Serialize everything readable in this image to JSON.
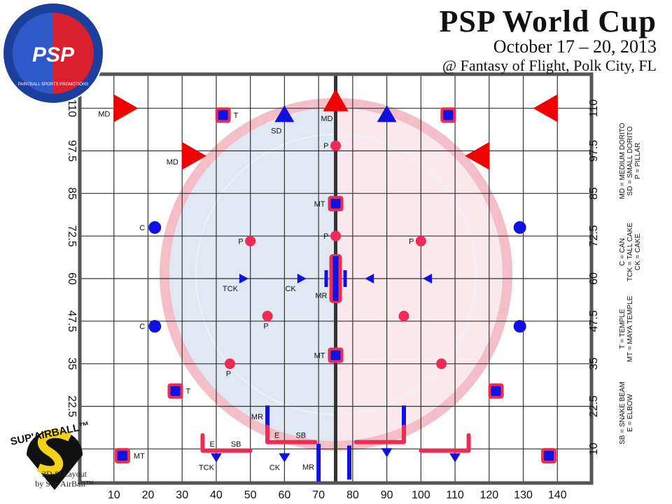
{
  "header": {
    "title": "PSP World Cup",
    "dates": "October 17 – 20, 2013",
    "venue": "@ Fantasy of Flight, Polk City, FL"
  },
  "logo": {
    "text": "PSP",
    "ring_text": "PAINTBALL SPORTS PROMOTIONS"
  },
  "credit": {
    "brand": "SUP'AIRBALL™",
    "line1": "3D & Layout",
    "line2": "by Sup'AirBall™"
  },
  "colors": {
    "red": "#f00000",
    "blue": "#1010e0",
    "pink": "#ee2b55",
    "grid": "#333333"
  },
  "field": {
    "x_range": [
      0,
      150
    ],
    "y_range": [
      0,
      120
    ],
    "x_ticks": [
      10,
      20,
      30,
      40,
      50,
      60,
      70,
      80,
      90,
      100,
      110,
      120,
      130,
      140
    ],
    "y_ticks": [
      "10",
      "22.5",
      "35",
      "47.5",
      "60",
      "72.5",
      "85",
      "97.5",
      "110"
    ]
  },
  "legend": [
    [
      "MD = MEDIUM DORITO",
      "SD = SMALL DORITO",
      "P = PILLAR"
    ],
    [
      "C = CAN",
      "TCK = TALL CAKE",
      "CK = CAKE"
    ],
    [
      "T = TEMPLE",
      "MT = MAYA TEMPLE"
    ],
    [
      "SB = SNAKE BEAM",
      "E = ELBOW"
    ]
  ],
  "bunkers": [
    {
      "type": "md",
      "dir": "right",
      "x": 13,
      "y": 110,
      "label": "MD"
    },
    {
      "type": "md",
      "dir": "up",
      "x": 75,
      "y": 112,
      "label": "MD"
    },
    {
      "type": "md",
      "dir": "left",
      "x": 137,
      "y": 110,
      "label": ""
    },
    {
      "type": "md",
      "dir": "right",
      "x": 33,
      "y": 96,
      "label": "MD"
    },
    {
      "type": "md",
      "dir": "left",
      "x": 117,
      "y": 96,
      "label": ""
    },
    {
      "type": "sd",
      "x": 60,
      "y": 108,
      "label": "SD"
    },
    {
      "type": "sd",
      "x": 90,
      "y": 108,
      "label": ""
    },
    {
      "type": "t",
      "x": 42,
      "y": 108,
      "label": "T"
    },
    {
      "type": "t",
      "x": 108,
      "y": 108,
      "label": ""
    },
    {
      "type": "t",
      "x": 28,
      "y": 27,
      "label": "T"
    },
    {
      "type": "t",
      "x": 122,
      "y": 27,
      "label": ""
    },
    {
      "type": "mt",
      "x": 75,
      "y": 82,
      "label": "MT"
    },
    {
      "type": "mt",
      "x": 75,
      "y": 37.5,
      "label": "MT"
    },
    {
      "type": "mt",
      "x": 12.5,
      "y": 8,
      "label": "MT"
    },
    {
      "type": "mt",
      "x": 137.5,
      "y": 8,
      "label": ""
    },
    {
      "type": "p",
      "x": 75,
      "y": 99,
      "label": "P"
    },
    {
      "type": "p",
      "x": 75,
      "y": 72.5,
      "label": "P"
    },
    {
      "type": "p",
      "x": 50,
      "y": 71,
      "label": "P"
    },
    {
      "type": "p",
      "x": 100,
      "y": 71,
      "label": "P"
    },
    {
      "type": "p",
      "x": 55,
      "y": 49,
      "label": "P"
    },
    {
      "type": "p",
      "x": 95,
      "y": 49,
      "label": ""
    },
    {
      "type": "p",
      "x": 44,
      "y": 35,
      "label": "P"
    },
    {
      "type": "p",
      "x": 106,
      "y": 35,
      "label": ""
    },
    {
      "type": "c",
      "x": 22,
      "y": 75,
      "label": "C"
    },
    {
      "type": "c",
      "x": 129,
      "y": 75,
      "label": ""
    },
    {
      "type": "c",
      "x": 22,
      "y": 46,
      "label": "C"
    },
    {
      "type": "c",
      "x": 129,
      "y": 46,
      "label": ""
    },
    {
      "type": "tck",
      "dir": "right",
      "x": 48,
      "y": 60,
      "label": "TCK"
    },
    {
      "type": "tck",
      "dir": "right",
      "x": 65,
      "y": 60,
      "label": "CK"
    },
    {
      "type": "tck",
      "dir": "left",
      "x": 85,
      "y": 60,
      "label": ""
    },
    {
      "type": "tck",
      "dir": "left",
      "x": 102,
      "y": 60,
      "label": ""
    },
    {
      "type": "tck",
      "dir": "down",
      "x": 40,
      "y": 7.5,
      "label": "TCK"
    },
    {
      "type": "tck",
      "dir": "down",
      "x": 60,
      "y": 7.5,
      "label": "CK"
    },
    {
      "type": "tck",
      "dir": "down",
      "x": 90,
      "y": 9,
      "label": ""
    },
    {
      "type": "tck",
      "dir": "down",
      "x": 110,
      "y": 7.5,
      "label": ""
    },
    {
      "type": "mrc",
      "x": 75,
      "y": 60,
      "label": "MR"
    },
    {
      "type": "mr",
      "x": 55,
      "y": 19.5,
      "len": 6.5,
      "label": "MR"
    },
    {
      "type": "mr",
      "x": 95,
      "y": 19.5,
      "len": 6.5,
      "label": ""
    },
    {
      "type": "mr",
      "x": 70,
      "y": 6,
      "len": 11,
      "label": "MR"
    },
    {
      "type": "mr",
      "x": 79,
      "y": 6,
      "len": 10,
      "label": ""
    },
    {
      "type": "sb",
      "x1": 36,
      "x2": 50,
      "y": 9.5,
      "corner": "left",
      "label": "SB",
      "elbow": "E"
    },
    {
      "type": "sb",
      "x1": 55,
      "x2": 69,
      "y": 12,
      "corner": "left",
      "label": "SB",
      "elbow": "E"
    },
    {
      "type": "sb",
      "x1": 81,
      "x2": 95,
      "y": 12,
      "corner": "right",
      "label": "",
      "elbow": ""
    },
    {
      "type": "sb",
      "x1": 100,
      "x2": 114,
      "y": 9.5,
      "corner": "right",
      "label": "",
      "elbow": ""
    }
  ]
}
